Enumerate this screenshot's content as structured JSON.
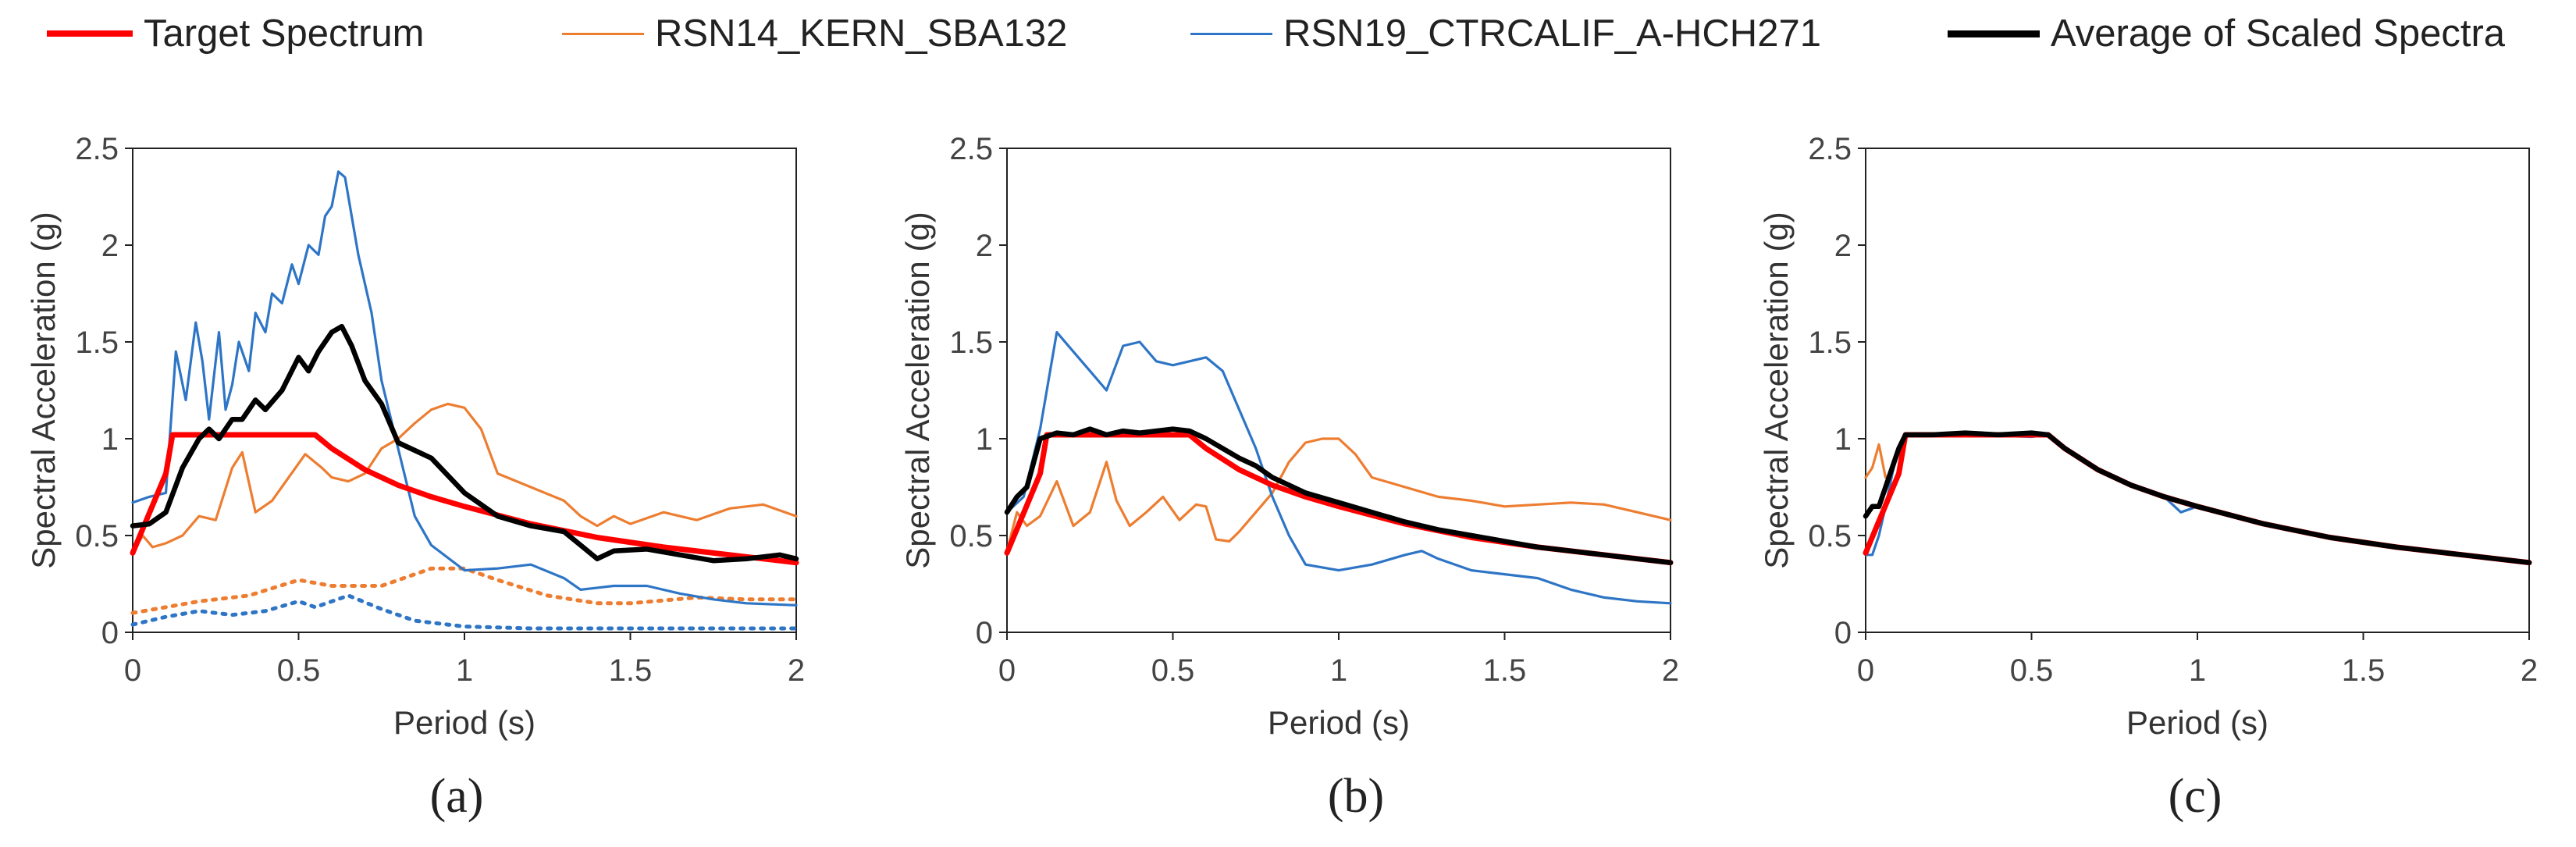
{
  "legend": {
    "items": [
      {
        "label": "Target Spectrum",
        "color": "#ff0000",
        "width": 8
      },
      {
        "label": "RSN14_KERN_SBA132",
        "color": "#ed7d31",
        "width": 3
      },
      {
        "label": "RSN19_CTRCALIF_A-HCH271",
        "color": "#2e75c6",
        "width": 3
      },
      {
        "label": "Average of Scaled Spectra",
        "color": "#000000",
        "width": 9
      }
    ]
  },
  "chart_data": [
    {
      "type": "line",
      "panel_label": "(a)",
      "xlabel": "Period (s)",
      "ylabel": "Spectral Acceleration (g)",
      "xlim": [
        0,
        2
      ],
      "ylim": [
        0,
        2.5
      ],
      "xticks": [
        "0",
        "0.5",
        "1",
        "1.5",
        "2"
      ],
      "yticks": [
        "0",
        "0.5",
        "1",
        "1.5",
        "2",
        "2.5"
      ],
      "series": [
        {
          "name": "RSN14_KERN_SBA132 (unscaled)",
          "color": "#ed7d31",
          "width": 5,
          "dash": "4,9",
          "x": [
            0,
            0.1,
            0.2,
            0.35,
            0.5,
            0.6,
            0.75,
            0.9,
            1.0,
            1.1,
            1.25,
            1.4,
            1.5,
            1.7,
            1.85,
            2.0
          ],
          "y": [
            0.1,
            0.13,
            0.16,
            0.19,
            0.27,
            0.24,
            0.24,
            0.33,
            0.33,
            0.27,
            0.19,
            0.15,
            0.15,
            0.18,
            0.17,
            0.17
          ]
        },
        {
          "name": "RSN19_CTRCALIF_A-HCH271 (unscaled)",
          "color": "#2e75c6",
          "width": 5,
          "dash": "4,9",
          "x": [
            0,
            0.1,
            0.2,
            0.3,
            0.4,
            0.5,
            0.55,
            0.65,
            0.75,
            0.85,
            1.0,
            1.2,
            1.5,
            2.0
          ],
          "y": [
            0.04,
            0.08,
            0.11,
            0.09,
            0.11,
            0.16,
            0.13,
            0.19,
            0.12,
            0.06,
            0.03,
            0.02,
            0.02,
            0.02
          ]
        },
        {
          "name": "RSN14_KERN_SBA132",
          "color": "#ed7d31",
          "width": 3.2,
          "x": [
            0,
            0.03,
            0.06,
            0.1,
            0.15,
            0.2,
            0.25,
            0.3,
            0.33,
            0.37,
            0.42,
            0.47,
            0.52,
            0.57,
            0.6,
            0.65,
            0.7,
            0.75,
            0.8,
            0.85,
            0.9,
            0.95,
            1.0,
            1.05,
            1.1,
            1.2,
            1.3,
            1.35,
            1.4,
            1.45,
            1.5,
            1.6,
            1.7,
            1.8,
            1.9,
            2.0
          ],
          "y": [
            0.41,
            0.5,
            0.44,
            0.46,
            0.5,
            0.6,
            0.58,
            0.85,
            0.93,
            0.62,
            0.68,
            0.8,
            0.92,
            0.85,
            0.8,
            0.78,
            0.82,
            0.95,
            1.0,
            1.08,
            1.15,
            1.18,
            1.16,
            1.05,
            0.82,
            0.75,
            0.68,
            0.6,
            0.55,
            0.6,
            0.56,
            0.62,
            0.58,
            0.64,
            0.66,
            0.6
          ]
        },
        {
          "name": "RSN19_CTRCALIF_A-HCH271",
          "color": "#2e75c6",
          "width": 3.2,
          "x": [
            0,
            0.05,
            0.1,
            0.13,
            0.16,
            0.19,
            0.21,
            0.23,
            0.26,
            0.28,
            0.3,
            0.32,
            0.35,
            0.37,
            0.4,
            0.42,
            0.45,
            0.48,
            0.5,
            0.53,
            0.56,
            0.58,
            0.6,
            0.62,
            0.64,
            0.66,
            0.68,
            0.72,
            0.75,
            0.8,
            0.85,
            0.9,
            1.0,
            1.1,
            1.2,
            1.3,
            1.35,
            1.45,
            1.55,
            1.65,
            1.75,
            1.85,
            2.0
          ],
          "y": [
            0.67,
            0.7,
            0.72,
            1.45,
            1.2,
            1.6,
            1.4,
            1.1,
            1.55,
            1.15,
            1.28,
            1.5,
            1.35,
            1.65,
            1.55,
            1.75,
            1.7,
            1.9,
            1.8,
            2.0,
            1.95,
            2.15,
            2.2,
            2.38,
            2.35,
            2.15,
            1.95,
            1.65,
            1.3,
            0.95,
            0.6,
            0.45,
            0.32,
            0.33,
            0.35,
            0.28,
            0.22,
            0.24,
            0.24,
            0.2,
            0.17,
            0.15,
            0.14
          ]
        },
        {
          "name": "Target Spectrum",
          "color": "#ff0000",
          "width": 7,
          "x": [
            0,
            0.1,
            0.12,
            0.55,
            0.6,
            0.7,
            0.8,
            0.9,
            1.0,
            1.2,
            1.4,
            1.6,
            1.8,
            2.0
          ],
          "y": [
            0.41,
            0.82,
            1.02,
            1.02,
            0.95,
            0.84,
            0.76,
            0.7,
            0.65,
            0.56,
            0.49,
            0.44,
            0.4,
            0.36
          ]
        },
        {
          "name": "Average of Scaled Spectra",
          "color": "#000000",
          "width": 6.5,
          "x": [
            0,
            0.05,
            0.1,
            0.15,
            0.2,
            0.23,
            0.26,
            0.3,
            0.33,
            0.37,
            0.4,
            0.45,
            0.5,
            0.53,
            0.56,
            0.6,
            0.63,
            0.66,
            0.7,
            0.75,
            0.8,
            0.9,
            1.0,
            1.1,
            1.2,
            1.3,
            1.35,
            1.4,
            1.45,
            1.55,
            1.65,
            1.75,
            1.85,
            1.95,
            2.0
          ],
          "y": [
            0.55,
            0.56,
            0.62,
            0.85,
            1.0,
            1.05,
            1.0,
            1.1,
            1.1,
            1.2,
            1.15,
            1.25,
            1.42,
            1.35,
            1.45,
            1.55,
            1.58,
            1.48,
            1.3,
            1.18,
            0.98,
            0.9,
            0.72,
            0.6,
            0.55,
            0.52,
            0.45,
            0.38,
            0.42,
            0.43,
            0.4,
            0.37,
            0.38,
            0.4,
            0.38
          ]
        }
      ]
    },
    {
      "type": "line",
      "panel_label": "(b)",
      "xlabel": "Period (s)",
      "ylabel": "Spectral Acceleration (g)",
      "xlim": [
        0,
        2
      ],
      "ylim": [
        0,
        2.5
      ],
      "xticks": [
        "0",
        "0.5",
        "1",
        "1.5",
        "2"
      ],
      "yticks": [
        "0",
        "0.5",
        "1",
        "1.5",
        "2",
        "2.5"
      ],
      "series": [
        {
          "name": "RSN14_KERN_SBA132",
          "color": "#ed7d31",
          "width": 3.2,
          "x": [
            0,
            0.03,
            0.06,
            0.1,
            0.15,
            0.2,
            0.25,
            0.3,
            0.33,
            0.37,
            0.42,
            0.47,
            0.52,
            0.57,
            0.6,
            0.63,
            0.67,
            0.7,
            0.75,
            0.8,
            0.85,
            0.9,
            0.95,
            1.0,
            1.05,
            1.1,
            1.2,
            1.3,
            1.4,
            1.5,
            1.6,
            1.7,
            1.8,
            1.9,
            2.0
          ],
          "y": [
            0.42,
            0.62,
            0.55,
            0.6,
            0.78,
            0.55,
            0.62,
            0.88,
            0.68,
            0.55,
            0.62,
            0.7,
            0.58,
            0.66,
            0.65,
            0.48,
            0.47,
            0.52,
            0.62,
            0.72,
            0.88,
            0.98,
            1.0,
            1.0,
            0.92,
            0.8,
            0.75,
            0.7,
            0.68,
            0.65,
            0.66,
            0.67,
            0.66,
            0.62,
            0.58
          ]
        },
        {
          "name": "RSN19_CTRCALIF_A-HCH271",
          "color": "#2e75c6",
          "width": 3.2,
          "x": [
            0,
            0.05,
            0.1,
            0.15,
            0.2,
            0.25,
            0.3,
            0.35,
            0.4,
            0.45,
            0.5,
            0.55,
            0.6,
            0.65,
            0.7,
            0.75,
            0.8,
            0.85,
            0.9,
            1.0,
            1.1,
            1.2,
            1.25,
            1.3,
            1.4,
            1.5,
            1.6,
            1.7,
            1.8,
            1.9,
            2.0
          ],
          "y": [
            0.62,
            0.7,
            1.05,
            1.55,
            1.45,
            1.35,
            1.25,
            1.48,
            1.5,
            1.4,
            1.38,
            1.4,
            1.42,
            1.35,
            1.15,
            0.95,
            0.7,
            0.5,
            0.35,
            0.32,
            0.35,
            0.4,
            0.42,
            0.38,
            0.32,
            0.3,
            0.28,
            0.22,
            0.18,
            0.16,
            0.15
          ]
        },
        {
          "name": "Target Spectrum",
          "color": "#ff0000",
          "width": 7,
          "x": [
            0,
            0.1,
            0.12,
            0.55,
            0.6,
            0.7,
            0.8,
            0.9,
            1.0,
            1.2,
            1.4,
            1.6,
            1.8,
            2.0
          ],
          "y": [
            0.41,
            0.82,
            1.02,
            1.02,
            0.95,
            0.84,
            0.76,
            0.7,
            0.65,
            0.56,
            0.49,
            0.44,
            0.4,
            0.36
          ]
        },
        {
          "name": "Average of Scaled Spectra",
          "color": "#000000",
          "width": 6.5,
          "x": [
            0,
            0.03,
            0.06,
            0.1,
            0.15,
            0.2,
            0.25,
            0.3,
            0.35,
            0.4,
            0.45,
            0.5,
            0.55,
            0.6,
            0.65,
            0.7,
            0.75,
            0.8,
            0.9,
            1.0,
            1.1,
            1.2,
            1.3,
            1.4,
            1.5,
            1.6,
            1.7,
            1.8,
            1.9,
            2.0
          ],
          "y": [
            0.62,
            0.7,
            0.75,
            1.0,
            1.03,
            1.02,
            1.05,
            1.02,
            1.04,
            1.03,
            1.04,
            1.05,
            1.04,
            1.0,
            0.95,
            0.9,
            0.86,
            0.8,
            0.72,
            0.67,
            0.62,
            0.57,
            0.53,
            0.5,
            0.47,
            0.44,
            0.42,
            0.4,
            0.38,
            0.36
          ]
        }
      ]
    },
    {
      "type": "line",
      "panel_label": "(c)",
      "xlabel": "Period (s)",
      "ylabel": "Spectral Acceleration (g)",
      "xlim": [
        0,
        2
      ],
      "ylim": [
        0,
        2.5
      ],
      "xticks": [
        "0",
        "0.5",
        "1",
        "1.5",
        "2"
      ],
      "yticks": [
        "0",
        "0.5",
        "1",
        "1.5",
        "2",
        "2.5"
      ],
      "series": [
        {
          "name": "RSN14_KERN_SBA132",
          "color": "#ed7d31",
          "width": 3.2,
          "x": [
            0,
            0.02,
            0.04,
            0.06,
            0.08,
            0.1,
            0.12,
            0.3,
            0.5,
            0.55,
            0.6,
            0.7,
            0.8,
            0.9,
            1.0,
            1.2,
            1.4,
            1.6,
            1.8,
            2.0
          ],
          "y": [
            0.8,
            0.85,
            0.97,
            0.8,
            0.82,
            0.95,
            1.02,
            1.02,
            1.03,
            1.02,
            0.95,
            0.84,
            0.76,
            0.7,
            0.65,
            0.56,
            0.49,
            0.44,
            0.4,
            0.36
          ]
        },
        {
          "name": "RSN19_CTRCALIF_A-HCH271",
          "color": "#2e75c6",
          "width": 3.2,
          "x": [
            0,
            0.02,
            0.04,
            0.06,
            0.09,
            0.12,
            0.3,
            0.5,
            0.55,
            0.6,
            0.7,
            0.8,
            0.9,
            0.95,
            1.0,
            1.2,
            1.4,
            1.6,
            1.8,
            2.0
          ],
          "y": [
            0.4,
            0.4,
            0.5,
            0.65,
            0.9,
            1.02,
            1.02,
            1.01,
            1.02,
            0.95,
            0.84,
            0.76,
            0.7,
            0.62,
            0.65,
            0.56,
            0.49,
            0.44,
            0.4,
            0.36
          ]
        },
        {
          "name": "Target Spectrum",
          "color": "#ff0000",
          "width": 7,
          "x": [
            0,
            0.1,
            0.12,
            0.55,
            0.6,
            0.7,
            0.8,
            0.9,
            1.0,
            1.2,
            1.4,
            1.6,
            1.8,
            2.0
          ],
          "y": [
            0.41,
            0.82,
            1.02,
            1.02,
            0.95,
            0.84,
            0.76,
            0.7,
            0.65,
            0.56,
            0.49,
            0.44,
            0.4,
            0.36
          ]
        },
        {
          "name": "Average of Scaled Spectra",
          "color": "#000000",
          "width": 6.5,
          "x": [
            0,
            0.02,
            0.04,
            0.06,
            0.08,
            0.1,
            0.12,
            0.2,
            0.3,
            0.4,
            0.5,
            0.55,
            0.6,
            0.7,
            0.8,
            0.9,
            1.0,
            1.2,
            1.4,
            1.6,
            1.8,
            2.0
          ],
          "y": [
            0.6,
            0.65,
            0.65,
            0.75,
            0.85,
            0.95,
            1.02,
            1.02,
            1.03,
            1.02,
            1.03,
            1.02,
            0.95,
            0.84,
            0.76,
            0.7,
            0.65,
            0.56,
            0.49,
            0.44,
            0.4,
            0.36
          ]
        }
      ]
    }
  ]
}
